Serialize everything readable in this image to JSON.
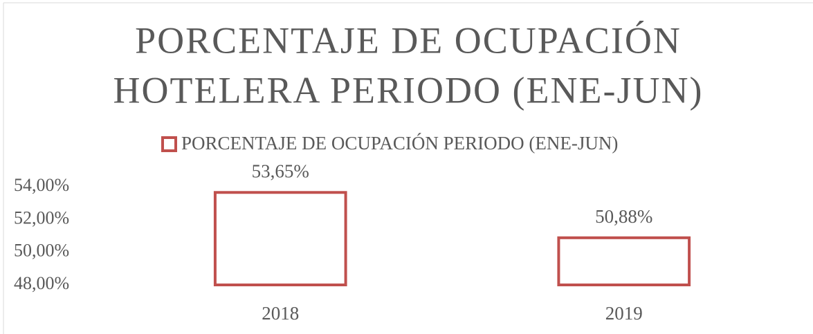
{
  "chart_data": {
    "type": "bar",
    "title": [
      "PORCENTAJE DE OCUPACIÓN",
      "HOTELERA PERIODO (ENE-JUN)"
    ],
    "categories": [
      "2018",
      "2019"
    ],
    "series": [
      {
        "name": "PORCENTAJE DE OCUPACIÓN PERIODO (ENE-JUN)",
        "color": "#c0504d",
        "values": [
          53.65,
          50.88
        ],
        "value_labels": [
          "53,65%",
          "50,88%"
        ]
      }
    ],
    "ylim": [
      48,
      54
    ],
    "yticks": [
      {
        "value": 48,
        "label": "48,00%"
      },
      {
        "value": 50,
        "label": "50,00%"
      },
      {
        "value": 52,
        "label": "52,00%"
      },
      {
        "value": 54,
        "label": "54,00%"
      }
    ],
    "legend": "top"
  }
}
